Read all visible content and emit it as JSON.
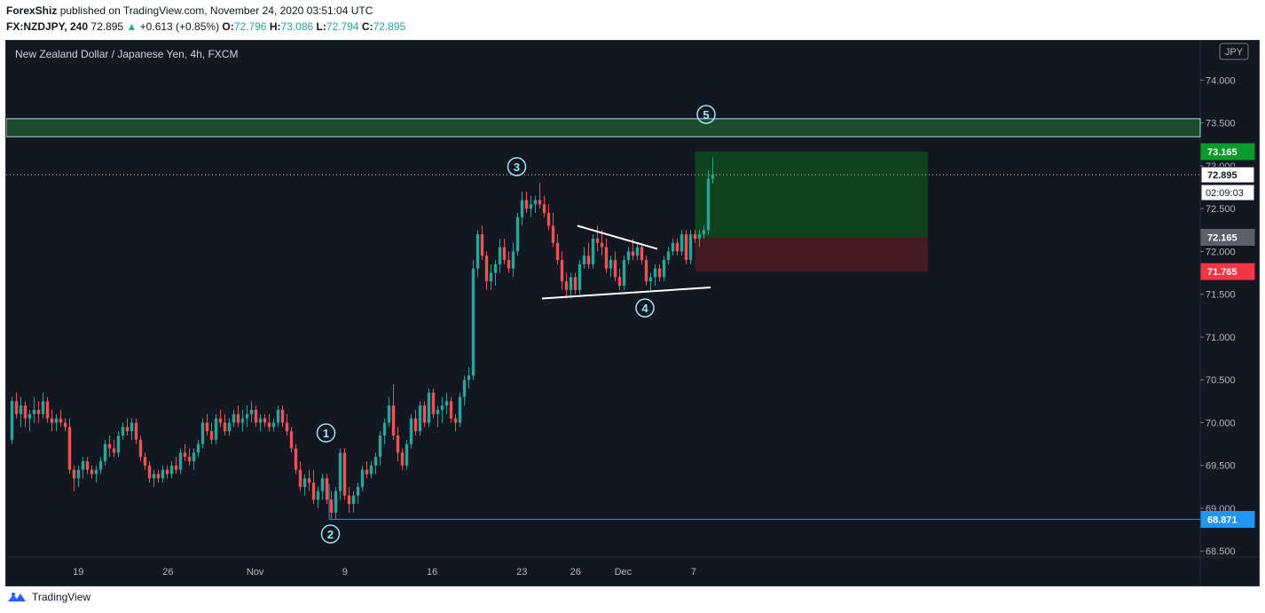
{
  "header": {
    "author": "ForexShiz",
    "published_text": "published on TradingView.com, November 24, 2020 03:51:04 UTC"
  },
  "ohlc": {
    "symbol": "FX:NZDJPY, 240",
    "last": "72.895",
    "arrow": "▲",
    "change": "+0.613 (+0.85%)",
    "o_label": "O:",
    "o": "72.796",
    "h_label": "H:",
    "h": "73.086",
    "l_label": "L:",
    "l": "72.794",
    "c_label": "C:",
    "c": "72.895"
  },
  "footer": {
    "brand": "TradingView"
  },
  "colors": {
    "background": "#131722",
    "up": "#26a69a",
    "down": "#ef5350",
    "grid": "#1e222d",
    "text": "#b2b5be",
    "wave_label": "#9fe4f6",
    "resistance_zone": "#1f4a2e",
    "profit_zone": "#0f4a1c",
    "loss_zone": "#4a1a22",
    "take_profit_badge": "#089c2b",
    "stop_badge": "#f23645",
    "entry_badge": "#5d606b",
    "support_badge": "#2196f3"
  },
  "chart_data": {
    "type": "candlestick",
    "title": "New Zealand Dollar / Japanese Yen, 4h, FXCM",
    "currency_badge": "JPY",
    "ylim": [
      68.43,
      74.46
    ],
    "y_ticks": [
      "68.500",
      "69.000",
      "69.500",
      "70.000",
      "70.500",
      "71.000",
      "71.500",
      "72.000",
      "72.500",
      "73.000",
      "73.500",
      "74.000"
    ],
    "x_ticks": [
      {
        "label": "19",
        "t": 15.45
      },
      {
        "label": "26",
        "t": 35.68
      },
      {
        "label": "Nov",
        "t": 55.33
      },
      {
        "label": "9",
        "t": 75.56
      },
      {
        "label": "16",
        "t": 95.23
      },
      {
        "label": "23",
        "t": 115.45
      },
      {
        "label": "26",
        "t": 127.55
      },
      {
        "label": "Dec",
        "t": 138.28
      },
      {
        "label": "7",
        "t": 154.16
      }
    ],
    "candles": [
      [
        69.8,
        70.3,
        69.75,
        70.25
      ],
      [
        70.25,
        70.35,
        70.05,
        70.1
      ],
      [
        70.1,
        70.3,
        69.95,
        70.2
      ],
      [
        70.2,
        70.25,
        69.95,
        70.05
      ],
      [
        70.05,
        70.15,
        69.9,
        70.1
      ],
      [
        70.1,
        70.3,
        70.0,
        70.15
      ],
      [
        70.15,
        70.25,
        70.0,
        70.1
      ],
      [
        70.1,
        70.35,
        70.05,
        70.25
      ],
      [
        70.25,
        70.3,
        70.0,
        70.05
      ],
      [
        70.05,
        70.15,
        69.9,
        70.0
      ],
      [
        70.0,
        70.1,
        69.9,
        70.05
      ],
      [
        70.05,
        70.15,
        69.95,
        70.0
      ],
      [
        70.0,
        70.05,
        69.9,
        69.95
      ],
      [
        69.95,
        70.05,
        69.4,
        69.45
      ],
      [
        69.45,
        69.5,
        69.2,
        69.35
      ],
      [
        69.35,
        69.5,
        69.25,
        69.45
      ],
      [
        69.45,
        69.6,
        69.35,
        69.55
      ],
      [
        69.55,
        69.6,
        69.4,
        69.45
      ],
      [
        69.45,
        69.5,
        69.35,
        69.4
      ],
      [
        69.4,
        69.5,
        69.3,
        69.45
      ],
      [
        69.45,
        69.6,
        69.4,
        69.55
      ],
      [
        69.55,
        69.8,
        69.5,
        69.75
      ],
      [
        69.75,
        69.85,
        69.6,
        69.7
      ],
      [
        69.7,
        69.8,
        69.6,
        69.65
      ],
      [
        69.65,
        69.9,
        69.6,
        69.85
      ],
      [
        69.85,
        70.0,
        69.8,
        69.95
      ],
      [
        69.95,
        70.05,
        69.85,
        69.9
      ],
      [
        69.9,
        70.05,
        69.8,
        70.0
      ],
      [
        70.0,
        70.05,
        69.75,
        69.8
      ],
      [
        69.8,
        69.85,
        69.55,
        69.6
      ],
      [
        69.6,
        69.65,
        69.45,
        69.5
      ],
      [
        69.5,
        69.55,
        69.3,
        69.35
      ],
      [
        69.35,
        69.45,
        69.25,
        69.4
      ],
      [
        69.4,
        69.45,
        69.3,
        69.35
      ],
      [
        69.35,
        69.5,
        69.3,
        69.45
      ],
      [
        69.45,
        69.5,
        69.35,
        69.4
      ],
      [
        69.4,
        69.55,
        69.35,
        69.5
      ],
      [
        69.5,
        69.6,
        69.4,
        69.45
      ],
      [
        69.45,
        69.7,
        69.4,
        69.65
      ],
      [
        69.65,
        69.75,
        69.55,
        69.6
      ],
      [
        69.6,
        69.7,
        69.5,
        69.55
      ],
      [
        69.55,
        69.7,
        69.45,
        69.65
      ],
      [
        69.65,
        69.8,
        69.6,
        69.75
      ],
      [
        69.75,
        70.05,
        69.7,
        70.0
      ],
      [
        70.0,
        70.1,
        69.85,
        69.9
      ],
      [
        69.9,
        70.0,
        69.75,
        69.8
      ],
      [
        69.8,
        70.1,
        69.75,
        70.05
      ],
      [
        70.05,
        70.15,
        69.95,
        70.0
      ],
      [
        70.0,
        70.1,
        69.85,
        69.9
      ],
      [
        69.9,
        70.05,
        69.85,
        70.0
      ],
      [
        70.0,
        70.15,
        69.95,
        70.1
      ],
      [
        70.1,
        70.2,
        69.95,
        70.0
      ],
      [
        70.0,
        70.15,
        69.9,
        70.05
      ],
      [
        70.05,
        70.2,
        69.95,
        70.1
      ],
      [
        70.1,
        70.25,
        70.0,
        70.15
      ],
      [
        70.15,
        70.2,
        69.95,
        70.0
      ],
      [
        70.0,
        70.1,
        69.9,
        70.05
      ],
      [
        70.05,
        70.1,
        69.95,
        70.0
      ],
      [
        70.0,
        70.1,
        69.9,
        69.95
      ],
      [
        69.95,
        70.05,
        69.9,
        70.0
      ],
      [
        70.0,
        70.2,
        69.95,
        70.15
      ],
      [
        70.15,
        70.2,
        69.95,
        70.0
      ],
      [
        70.0,
        70.1,
        69.85,
        69.9
      ],
      [
        69.9,
        69.95,
        69.65,
        69.7
      ],
      [
        69.7,
        69.75,
        69.4,
        69.45
      ],
      [
        69.45,
        69.55,
        69.2,
        69.25
      ],
      [
        69.25,
        69.4,
        69.15,
        69.35
      ],
      [
        69.35,
        69.45,
        69.2,
        69.3
      ],
      [
        69.3,
        69.45,
        69.05,
        69.1
      ],
      [
        69.1,
        69.25,
        69.0,
        69.2
      ],
      [
        69.2,
        69.4,
        69.1,
        69.35
      ],
      [
        69.35,
        69.4,
        69.05,
        69.1
      ],
      [
        69.1,
        69.2,
        68.88,
        68.95
      ],
      [
        68.95,
        69.25,
        68.88,
        69.2
      ],
      [
        69.2,
        69.7,
        69.1,
        69.65
      ],
      [
        69.65,
        69.7,
        69.1,
        69.15
      ],
      [
        69.15,
        69.25,
        68.95,
        69.05
      ],
      [
        69.05,
        69.2,
        68.95,
        69.15
      ],
      [
        69.15,
        69.3,
        69.05,
        69.25
      ],
      [
        69.25,
        69.5,
        69.2,
        69.45
      ],
      [
        69.45,
        69.55,
        69.35,
        69.4
      ],
      [
        69.4,
        69.55,
        69.35,
        69.5
      ],
      [
        69.5,
        69.65,
        69.4,
        69.6
      ],
      [
        69.6,
        69.9,
        69.5,
        69.85
      ],
      [
        69.85,
        70.05,
        69.75,
        70.0
      ],
      [
        70.0,
        70.3,
        69.95,
        70.2
      ],
      [
        70.2,
        70.45,
        69.8,
        69.85
      ],
      [
        69.85,
        69.95,
        69.55,
        69.65
      ],
      [
        69.65,
        69.7,
        69.45,
        69.5
      ],
      [
        69.5,
        69.8,
        69.45,
        69.75
      ],
      [
        69.75,
        70.1,
        69.7,
        70.05
      ],
      [
        70.05,
        70.15,
        69.85,
        69.9
      ],
      [
        69.9,
        70.25,
        69.85,
        70.2
      ],
      [
        70.2,
        70.25,
        69.95,
        70.0
      ],
      [
        70.0,
        70.4,
        69.95,
        70.35
      ],
      [
        70.35,
        70.4,
        70.05,
        70.1
      ],
      [
        70.1,
        70.2,
        69.95,
        70.15
      ],
      [
        70.15,
        70.3,
        70.0,
        70.2
      ],
      [
        70.2,
        70.35,
        70.1,
        70.25
      ],
      [
        70.25,
        70.3,
        70.0,
        70.05
      ],
      [
        70.05,
        70.1,
        69.9,
        70.0
      ],
      [
        70.0,
        70.35,
        69.95,
        70.3
      ],
      [
        70.3,
        70.55,
        70.2,
        70.5
      ],
      [
        70.5,
        70.65,
        70.4,
        70.55
      ],
      [
        70.55,
        71.9,
        70.5,
        71.8
      ],
      [
        71.8,
        72.25,
        71.7,
        72.2
      ],
      [
        72.2,
        72.3,
        71.9,
        71.95
      ],
      [
        71.95,
        72.0,
        71.55,
        71.65
      ],
      [
        71.65,
        71.85,
        71.55,
        71.75
      ],
      [
        71.75,
        71.9,
        71.6,
        71.85
      ],
      [
        71.85,
        72.15,
        71.75,
        72.05
      ],
      [
        72.05,
        72.15,
        71.85,
        71.9
      ],
      [
        71.9,
        72.0,
        71.75,
        71.8
      ],
      [
        71.8,
        72.1,
        71.7,
        72.0
      ],
      [
        72.0,
        72.45,
        71.95,
        72.4
      ],
      [
        72.4,
        72.7,
        72.3,
        72.6
      ],
      [
        72.6,
        72.7,
        72.45,
        72.5
      ],
      [
        72.5,
        72.65,
        72.4,
        72.55
      ],
      [
        72.55,
        72.65,
        72.45,
        72.6
      ],
      [
        72.6,
        72.8,
        72.5,
        72.55
      ],
      [
        72.55,
        72.65,
        72.4,
        72.45
      ],
      [
        72.45,
        72.55,
        72.25,
        72.3
      ],
      [
        72.3,
        72.45,
        72.05,
        72.1
      ],
      [
        72.1,
        72.2,
        71.85,
        71.9
      ],
      [
        71.9,
        72.0,
        71.55,
        71.65
      ],
      [
        71.65,
        71.75,
        71.45,
        71.55
      ],
      [
        71.55,
        71.75,
        71.45,
        71.7
      ],
      [
        71.7,
        71.75,
        71.5,
        71.55
      ],
      [
        71.55,
        71.9,
        71.5,
        71.85
      ],
      [
        71.85,
        72.05,
        71.8,
        71.95
      ],
      [
        71.95,
        72.1,
        71.8,
        71.85
      ],
      [
        71.85,
        72.2,
        71.8,
        72.15
      ],
      [
        72.15,
        72.3,
        72.0,
        72.1
      ],
      [
        72.1,
        72.25,
        71.95,
        72.05
      ],
      [
        72.05,
        72.15,
        71.75,
        71.8
      ],
      [
        71.8,
        71.95,
        71.7,
        71.9
      ],
      [
        71.9,
        72.0,
        71.65,
        71.7
      ],
      [
        71.7,
        71.8,
        71.55,
        71.6
      ],
      [
        71.6,
        71.95,
        71.55,
        71.9
      ],
      [
        71.9,
        72.05,
        71.85,
        72.0
      ],
      [
        72.0,
        72.15,
        71.9,
        71.95
      ],
      [
        71.95,
        72.1,
        71.9,
        72.05
      ],
      [
        72.05,
        72.1,
        71.85,
        71.9
      ],
      [
        71.9,
        71.95,
        71.6,
        71.65
      ],
      [
        71.65,
        71.75,
        71.55,
        71.7
      ],
      [
        71.7,
        71.85,
        71.6,
        71.8
      ],
      [
        71.8,
        71.85,
        71.65,
        71.7
      ],
      [
        71.7,
        71.95,
        71.65,
        71.9
      ],
      [
        71.9,
        72.05,
        71.85,
        72.0
      ],
      [
        72.0,
        72.15,
        71.95,
        72.1
      ],
      [
        72.1,
        72.15,
        71.95,
        72.0
      ],
      [
        72.0,
        72.25,
        71.95,
        72.2
      ],
      [
        72.2,
        72.25,
        71.85,
        71.9
      ],
      [
        71.9,
        72.25,
        71.85,
        72.2
      ],
      [
        72.2,
        72.25,
        72.1,
        72.15
      ],
      [
        72.15,
        72.25,
        72.05,
        72.2
      ],
      [
        72.2,
        72.3,
        72.15,
        72.25
      ],
      [
        72.25,
        72.95,
        72.2,
        72.85
      ],
      [
        72.85,
        73.1,
        72.79,
        72.9
      ]
    ],
    "resistance_zone": [
      73.34,
      73.55
    ],
    "take_profit": "73.165",
    "entry": "72.165",
    "stop_loss": "71.765",
    "support_level": "68.871",
    "last_price": "72.895",
    "countdown": "02:09:03",
    "wave_labels": [
      "1",
      "2",
      "3",
      "4",
      "5"
    ]
  }
}
